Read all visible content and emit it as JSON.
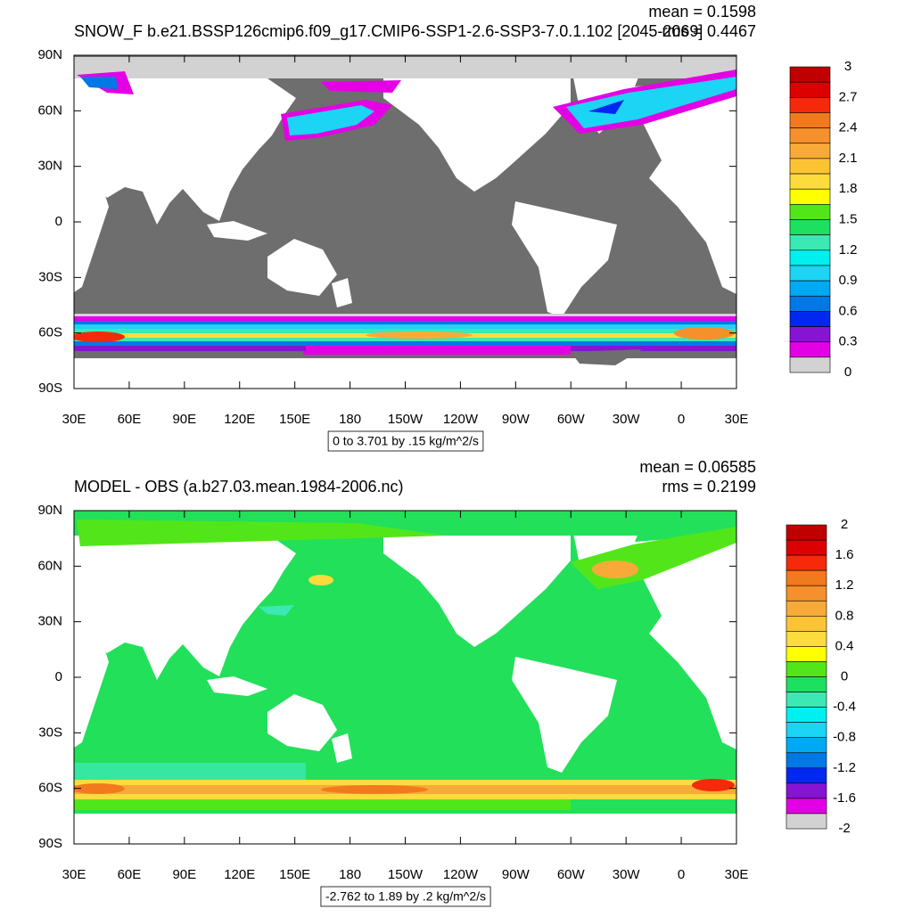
{
  "panels": [
    {
      "title": "SNOW_F b.e21.BSSP126cmip6.f09_g17.CMIP6-SSP1-2.6-SSP3-7.0.1.102 [2045-2069]",
      "stats": [
        "mean = 0.1598",
        "rms = 0.4467"
      ],
      "lat_labels": [
        "90N",
        "60N",
        "30N",
        "0",
        "30S",
        "60S",
        "90S"
      ],
      "lon_labels": [
        "30E",
        "60E",
        "90E",
        "120E",
        "150E",
        "180",
        "150W",
        "120W",
        "90W",
        "60W",
        "30W",
        "0",
        "30E"
      ],
      "colorbar_labels": [
        "3",
        "2.7",
        "2.4",
        "2.1",
        "1.8",
        "1.5",
        "1.2",
        "0.9",
        "0.6",
        "0.3",
        "0"
      ],
      "info": "0 to 3.701 by .15 kg/m^2/s"
    },
    {
      "title": "MODEL - OBS (a.b27.03.mean.1984-2006.nc)",
      "stats": [
        "mean = 0.06585",
        "rms = 0.2199"
      ],
      "lat_labels": [
        "90N",
        "60N",
        "30N",
        "0",
        "30S",
        "60S",
        "90S"
      ],
      "lon_labels": [
        "30E",
        "60E",
        "90E",
        "120E",
        "150E",
        "180",
        "150W",
        "120W",
        "90W",
        "60W",
        "30W",
        "0",
        "30E"
      ],
      "colorbar_labels": [
        "2",
        "1.6",
        "1.2",
        "0.8",
        "0.4",
        "0",
        "-0.4",
        "-0.8",
        "-1.2",
        "-1.6",
        "-2"
      ],
      "info": "-2.762 to 1.89 by .2 kg/m^2/s"
    }
  ],
  "palette": [
    "#c00000",
    "#dd0000",
    "#f52a0a",
    "#f27a1e",
    "#f5902c",
    "#f8aa38",
    "#fcc434",
    "#fcdc3c",
    "#ffff00",
    "#52e61a",
    "#1ee060",
    "#3ce8b4",
    "#00f0f0",
    "#1cd4f4",
    "#00aaf2",
    "#0078e6",
    "#0028f0",
    "#8614d2",
    "#e400e4",
    "#d2d2d2",
    "#6e6e6e"
  ]
}
